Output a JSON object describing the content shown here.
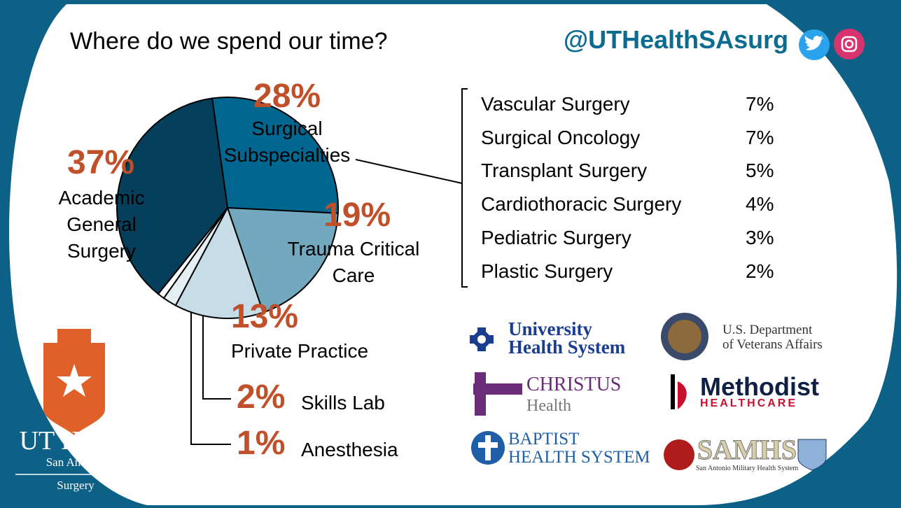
{
  "chart_data": {
    "type": "pie",
    "title": "Where do we spend our time?",
    "categories": [
      "Surgical Subspecialties",
      "Trauma Critical Care",
      "Private Practice",
      "Skills Lab",
      "Anesthesia",
      "Academic General Surgery"
    ],
    "values": [
      28,
      19,
      13,
      2,
      1,
      37
    ],
    "value_labels": [
      "28%",
      "19%",
      "13%",
      "2%",
      "1%",
      "37%"
    ],
    "colors": [
      "#006890",
      "#72a9bf",
      "#c6dde7",
      "#e4eef3",
      "#ffffff",
      "#063f5c"
    ]
  },
  "breakdown": {
    "rows": [
      [
        "Vascular Surgery",
        "7%"
      ],
      [
        "Surgical Oncology",
        "7%"
      ],
      [
        "Transplant Surgery",
        "5%"
      ],
      [
        "Cardiothoracic Surgery",
        "4%"
      ],
      [
        "Pediatric Surgery",
        "3%"
      ],
      [
        "Plastic Surgery",
        "2%"
      ]
    ]
  },
  "handle": "@UTHealthSAsurg",
  "logos": {
    "uhs": [
      "University",
      "Health System"
    ],
    "va": [
      "U.S. Department",
      "of Veterans Affairs"
    ],
    "christus": [
      "CHRISTUS",
      "Health"
    ],
    "methodist": [
      "Methodist",
      "HEALTHCARE"
    ],
    "baptist": [
      "BAPTIST",
      "HEALTH SYSTEM"
    ],
    "samhs": [
      "SAMHS",
      "San Antonio Military Health System"
    ],
    "ut": [
      "UT Health",
      "San Antonio",
      "Surgery"
    ]
  }
}
